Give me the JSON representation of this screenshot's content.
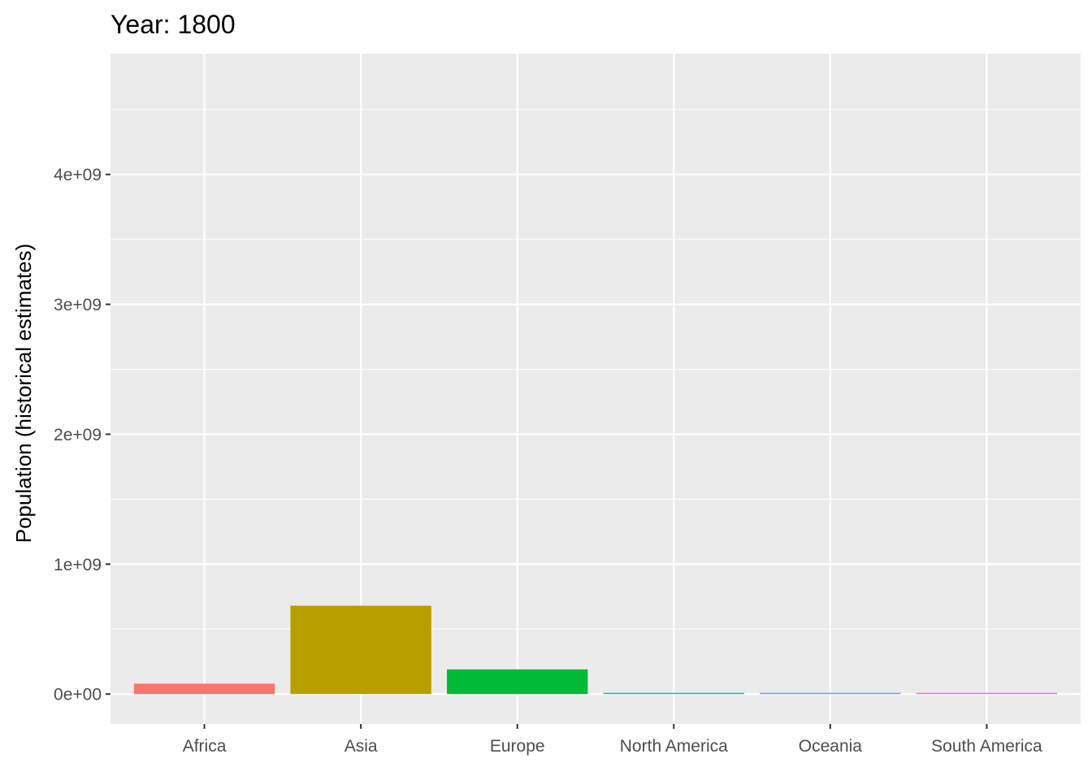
{
  "chart_data": {
    "type": "bar",
    "title": "Year: 1800",
    "xlabel": "",
    "ylabel": "Population (historical estimates)",
    "categories": [
      "Africa",
      "Asia",
      "Europe",
      "North America",
      "Oceania",
      "South America"
    ],
    "values": [
      80000000,
      680000000,
      190000000,
      7000000,
      2000000,
      8000000
    ],
    "colors": [
      "#F8766D",
      "#B79F00",
      "#00BA38",
      "#00BFC4",
      "#619CFF",
      "#F564E3"
    ],
    "ylim": [
      -230000000,
      4930000000
    ],
    "yticks": [
      0,
      1000000000,
      2000000000,
      3000000000,
      4000000000
    ],
    "ytick_labels": [
      "0e+00",
      "1e+09",
      "2e+09",
      "3e+09",
      "4e+09"
    ],
    "grid": true,
    "legend": "none",
    "panel_background": "#EBEBEB",
    "gridline_color": "#FFFFFF"
  }
}
